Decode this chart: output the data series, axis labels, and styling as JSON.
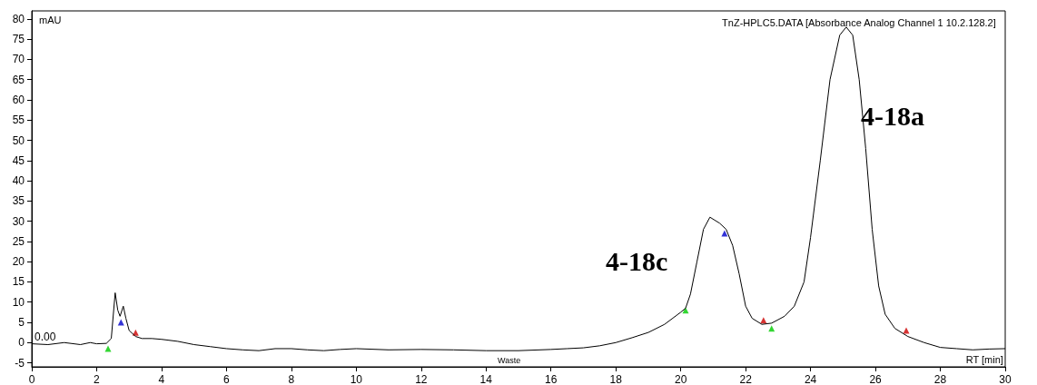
{
  "chart_data": {
    "type": "line",
    "title": "TnZ-HPLC5.DATA [Absorbance Analog Channel 1 10.2.128.2]",
    "xlabel": "RT [min]",
    "ylabel": "mAU",
    "xlim": [
      0,
      30
    ],
    "xticks": [
      0,
      2,
      4,
      6,
      8,
      10,
      12,
      14,
      16,
      18,
      20,
      22,
      24,
      26,
      28,
      30
    ],
    "ylim": [
      -6,
      82
    ],
    "yticks": [
      -5,
      0,
      5,
      10,
      15,
      20,
      25,
      30,
      35,
      40,
      45,
      50,
      55,
      60,
      65,
      70,
      75,
      80
    ],
    "grid": false,
    "marker": "none",
    "line_style": "solid",
    "annotations": [
      "0.00",
      "Waste",
      "4-18c",
      "4-18a"
    ],
    "series": [
      {
        "color": "#000000",
        "x": [
          0,
          0.5,
          1,
          1.5,
          1.8,
          2.0,
          2.3,
          2.45,
          2.57,
          2.65,
          2.72,
          2.82,
          2.9,
          3.0,
          3.2,
          3.4,
          3.7,
          4.0,
          4.5,
          5,
          5.5,
          6,
          6.5,
          7,
          7.5,
          8,
          8.5,
          9,
          9.5,
          10,
          11,
          12,
          13,
          14,
          15,
          16,
          16.5,
          17,
          17.5,
          18,
          18.5,
          19,
          19.5,
          20,
          20.15,
          20.3,
          20.5,
          20.7,
          20.9,
          21.2,
          21.4,
          21.6,
          21.8,
          22.0,
          22.2,
          22.5,
          22.8,
          23.2,
          23.5,
          23.8,
          24.0,
          24.3,
          24.6,
          24.9,
          25.1,
          25.3,
          25.5,
          25.7,
          25.9,
          26.1,
          26.3,
          26.6,
          27,
          27.5,
          28,
          28.5,
          29,
          29.5,
          30
        ],
        "values": [
          -0.3,
          -0.5,
          0,
          -0.5,
          0,
          -0.3,
          -0.2,
          1,
          12.3,
          8,
          6.5,
          9,
          6,
          3,
          1.5,
          1,
          1,
          0.8,
          0.3,
          -0.5,
          -1,
          -1.5,
          -1.8,
          -2,
          -1.5,
          -1.5,
          -1.8,
          -2,
          -1.7,
          -1.5,
          -1.8,
          -1.7,
          -1.8,
          -2,
          -2,
          -1.7,
          -1.5,
          -1.3,
          -0.8,
          0,
          1.2,
          2.5,
          4.5,
          7.5,
          8.5,
          12,
          20,
          28,
          31,
          29.5,
          28,
          24,
          17,
          9,
          6,
          4.5,
          4.8,
          6.5,
          9,
          15,
          26,
          45,
          65,
          76,
          78,
          76,
          65,
          48,
          28,
          14,
          7,
          3.5,
          1.5,
          0,
          -1.2,
          -1.5,
          -1.8,
          -1.6,
          -1.5
        ]
      },
      {
        "type": "scatter",
        "marker": "triangle",
        "color": "#00cc00",
        "x": [
          2.35,
          20.15,
          22.8
        ],
        "values": [
          -1.5,
          8,
          3.5
        ]
      },
      {
        "type": "scatter",
        "marker": "triangle",
        "color": "#0000cc",
        "x": [
          2.75,
          21.35
        ],
        "values": [
          5,
          27
        ]
      },
      {
        "type": "scatter",
        "marker": "triangle",
        "color": "#cc0000",
        "x": [
          3.2,
          22.55,
          26.95
        ],
        "values": [
          2.5,
          5.5,
          3
        ]
      }
    ]
  }
}
